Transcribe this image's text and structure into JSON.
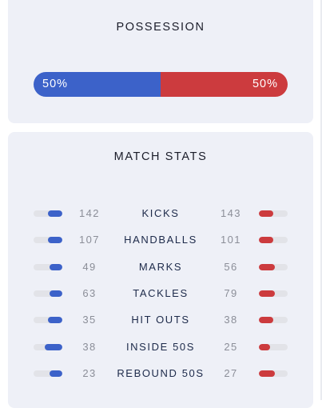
{
  "possession": {
    "title": "POSSESSION",
    "home_label": "50%",
    "away_label": "50%",
    "home_fraction": 0.5,
    "home_color": "#3c62c9",
    "away_color": "#cc3b3e"
  },
  "match_stats": {
    "title": "MATCH STATS",
    "rows": [
      {
        "label": "KICKS",
        "home": "142",
        "away": "143",
        "home_bar": 0.5,
        "away_bar": 0.5
      },
      {
        "label": "HANDBALLS",
        "home": "107",
        "away": "101",
        "home_bar": 0.5,
        "away_bar": 0.5
      },
      {
        "label": "MARKS",
        "home": "49",
        "away": "56",
        "home_bar": 0.45,
        "away_bar": 0.55
      },
      {
        "label": "TACKLES",
        "home": "63",
        "away": "79",
        "home_bar": 0.45,
        "away_bar": 0.55
      },
      {
        "label": "HIT OUTS",
        "home": "35",
        "away": "38",
        "home_bar": 0.5,
        "away_bar": 0.5
      },
      {
        "label": "INSIDE 50S",
        "home": "38",
        "away": "25",
        "home_bar": 0.6,
        "away_bar": 0.4
      },
      {
        "label": "REBOUND 50S",
        "home": "23",
        "away": "27",
        "home_bar": 0.45,
        "away_bar": 0.55
      }
    ]
  }
}
